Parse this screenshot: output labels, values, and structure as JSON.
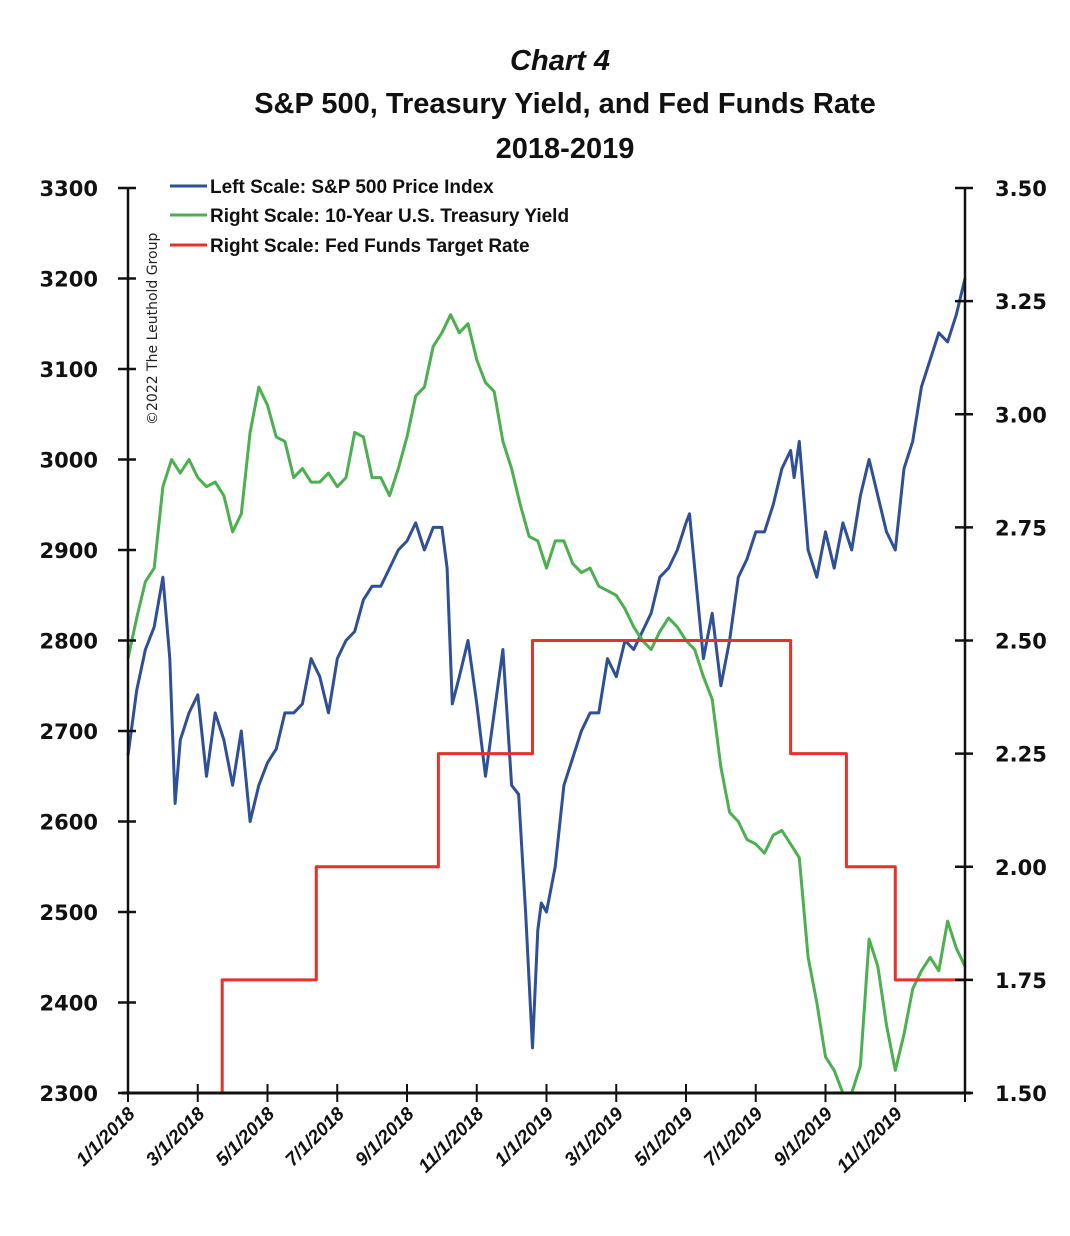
{
  "chart_data": {
    "type": "line",
    "title": "Chart 4",
    "subtitle_lines": [
      "S&P 500, Treasury Yield, and Fed Funds Rate",
      "2018-2019"
    ],
    "copyright": "©2022 The Leuthold Group",
    "x_start": "2018-01-01",
    "x_end": "2019-12-31",
    "x_tick_labels": [
      "1/1/2018",
      "3/1/2018",
      "5/1/2018",
      "7/1/2018",
      "9/1/2018",
      "11/1/2018",
      "1/1/2019",
      "3/1/2019",
      "5/1/2019",
      "7/1/2019",
      "9/1/2019",
      "11/1/2019"
    ],
    "left_axis": {
      "label": "",
      "ylim": [
        2300,
        3300
      ],
      "ticks": [
        "2300",
        "2400",
        "2500",
        "2600",
        "2700",
        "2800",
        "2900",
        "3000",
        "3100",
        "3200",
        "3300"
      ]
    },
    "right_axis": {
      "label": "",
      "ylim": [
        1.5,
        3.5
      ],
      "ticks": [
        "1.50",
        "1.75",
        "2.00",
        "2.25",
        "2.50",
        "2.75",
        "3.00",
        "3.25",
        "3.50"
      ]
    },
    "legend": {
      "placement": "top-left",
      "entries": [
        {
          "label": "Left Scale: S&P 500 Price Index",
          "color": "#2f4f96"
        },
        {
          "label": "Right Scale: 10-Year U.S. Treasury Yield",
          "color": "#4caf50"
        },
        {
          "label": "Right Scale: Fed Funds Target Rate",
          "color": "#e8312a"
        }
      ]
    },
    "series": [
      {
        "name": "S&P 500 Price Index",
        "axis": "left",
        "color": "#2f4f96",
        "month_offsets": [
          0,
          0.25,
          0.5,
          0.75,
          1,
          1.2,
          1.35,
          1.5,
          1.75,
          2,
          2.25,
          2.5,
          2.75,
          3,
          3.25,
          3.5,
          3.75,
          4,
          4.25,
          4.5,
          4.75,
          5,
          5.25,
          5.5,
          5.75,
          6,
          6.25,
          6.5,
          6.75,
          7,
          7.25,
          7.5,
          7.75,
          8,
          8.25,
          8.5,
          8.75,
          9,
          9.15,
          9.3,
          9.5,
          9.75,
          10,
          10.25,
          10.5,
          10.75,
          11,
          11.2,
          11.4,
          11.6,
          11.75,
          11.85,
          12,
          12.25,
          12.5,
          12.75,
          13,
          13.25,
          13.5,
          13.75,
          14,
          14.25,
          14.5,
          14.75,
          15,
          15.25,
          15.5,
          15.75,
          16,
          16.1,
          16.25,
          16.5,
          16.75,
          17,
          17.25,
          17.5,
          17.75,
          18,
          18.25,
          18.5,
          18.75,
          19,
          19.1,
          19.25,
          19.5,
          19.75,
          20,
          20.25,
          20.5,
          20.75,
          21,
          21.25,
          21.5,
          21.75,
          22,
          22.25,
          22.5,
          22.75,
          23,
          23.25,
          23.5,
          23.75,
          24
        ],
        "values": [
          2673,
          2745,
          2790,
          2815,
          2870,
          2780,
          2620,
          2690,
          2720,
          2740,
          2650,
          2720,
          2690,
          2640,
          2700,
          2600,
          2640,
          2665,
          2680,
          2720,
          2720,
          2730,
          2780,
          2760,
          2720,
          2780,
          2800,
          2810,
          2845,
          2860,
          2860,
          2880,
          2900,
          2910,
          2930,
          2900,
          2925,
          2925,
          2880,
          2730,
          2760,
          2800,
          2730,
          2650,
          2720,
          2790,
          2640,
          2630,
          2500,
          2350,
          2480,
          2510,
          2500,
          2550,
          2640,
          2670,
          2700,
          2720,
          2720,
          2780,
          2760,
          2800,
          2790,
          2810,
          2830,
          2870,
          2880,
          2900,
          2930,
          2940,
          2880,
          2780,
          2830,
          2750,
          2800,
          2870,
          2890,
          2920,
          2920,
          2950,
          2990,
          3010,
          2980,
          3020,
          2900,
          2870,
          2920,
          2880,
          2930,
          2900,
          2960,
          3000,
          2960,
          2920,
          2900,
          2990,
          3020,
          3080,
          3110,
          3140,
          3130,
          3160,
          3200,
          3240,
          3230
        ]
      },
      {
        "name": "10-Year U.S. Treasury Yield",
        "axis": "right",
        "color": "#4caf50",
        "month_offsets": [
          0,
          0.25,
          0.5,
          0.75,
          1,
          1.25,
          1.5,
          1.75,
          2,
          2.25,
          2.5,
          2.75,
          3,
          3.25,
          3.5,
          3.75,
          4,
          4.25,
          4.5,
          4.75,
          5,
          5.25,
          5.5,
          5.75,
          6,
          6.25,
          6.5,
          6.75,
          7,
          7.25,
          7.5,
          7.75,
          8,
          8.25,
          8.5,
          8.75,
          9,
          9.25,
          9.5,
          9.75,
          10,
          10.25,
          10.5,
          10.75,
          11,
          11.25,
          11.5,
          11.75,
          12,
          12.25,
          12.5,
          12.75,
          13,
          13.25,
          13.5,
          13.75,
          14,
          14.25,
          14.5,
          14.75,
          15,
          15.25,
          15.5,
          15.75,
          16,
          16.25,
          16.5,
          16.75,
          17,
          17.25,
          17.5,
          17.75,
          18,
          18.25,
          18.5,
          18.75,
          19,
          19.25,
          19.5,
          19.75,
          20,
          20.25,
          20.5,
          20.75,
          21,
          21.25,
          21.5,
          21.75,
          22,
          22.25,
          22.5,
          22.75,
          23,
          23.25,
          23.5,
          23.75,
          24
        ],
        "values": [
          2.46,
          2.55,
          2.63,
          2.66,
          2.84,
          2.9,
          2.87,
          2.9,
          2.86,
          2.84,
          2.85,
          2.82,
          2.74,
          2.78,
          2.96,
          3.06,
          3.02,
          2.95,
          2.94,
          2.86,
          2.88,
          2.85,
          2.85,
          2.87,
          2.84,
          2.86,
          2.96,
          2.95,
          2.86,
          2.86,
          2.82,
          2.88,
          2.95,
          3.04,
          3.06,
          3.15,
          3.18,
          3.22,
          3.18,
          3.2,
          3.12,
          3.07,
          3.05,
          2.94,
          2.88,
          2.8,
          2.73,
          2.72,
          2.66,
          2.72,
          2.72,
          2.67,
          2.65,
          2.66,
          2.62,
          2.61,
          2.6,
          2.57,
          2.53,
          2.5,
          2.48,
          2.52,
          2.55,
          2.53,
          2.5,
          2.48,
          2.42,
          2.37,
          2.22,
          2.12,
          2.1,
          2.06,
          2.05,
          2.03,
          2.07,
          2.08,
          2.05,
          2.02,
          1.8,
          1.7,
          1.58,
          1.55,
          1.5,
          1.5,
          1.56,
          1.84,
          1.78,
          1.65,
          1.55,
          1.63,
          1.73,
          1.77,
          1.8,
          1.77,
          1.88,
          1.82,
          1.78,
          1.82,
          1.85,
          1.88,
          1.92,
          1.9
        ]
      },
      {
        "name": "Fed Funds Target Rate",
        "axis": "right",
        "color": "#e8312a",
        "step": true,
        "steps": [
          {
            "start_month": 0,
            "value": 1.5
          },
          {
            "start_month": 2.7,
            "value": 1.75
          },
          {
            "start_month": 5.4,
            "value": 2.0
          },
          {
            "start_month": 8.9,
            "value": 2.25
          },
          {
            "start_month": 11.6,
            "value": 2.5
          },
          {
            "start_month": 19.0,
            "value": 2.25
          },
          {
            "start_month": 20.6,
            "value": 2.0
          },
          {
            "start_month": 22.0,
            "value": 1.75
          },
          {
            "start_month": 24.0,
            "value": 1.75
          }
        ]
      }
    ],
    "grid": false
  }
}
